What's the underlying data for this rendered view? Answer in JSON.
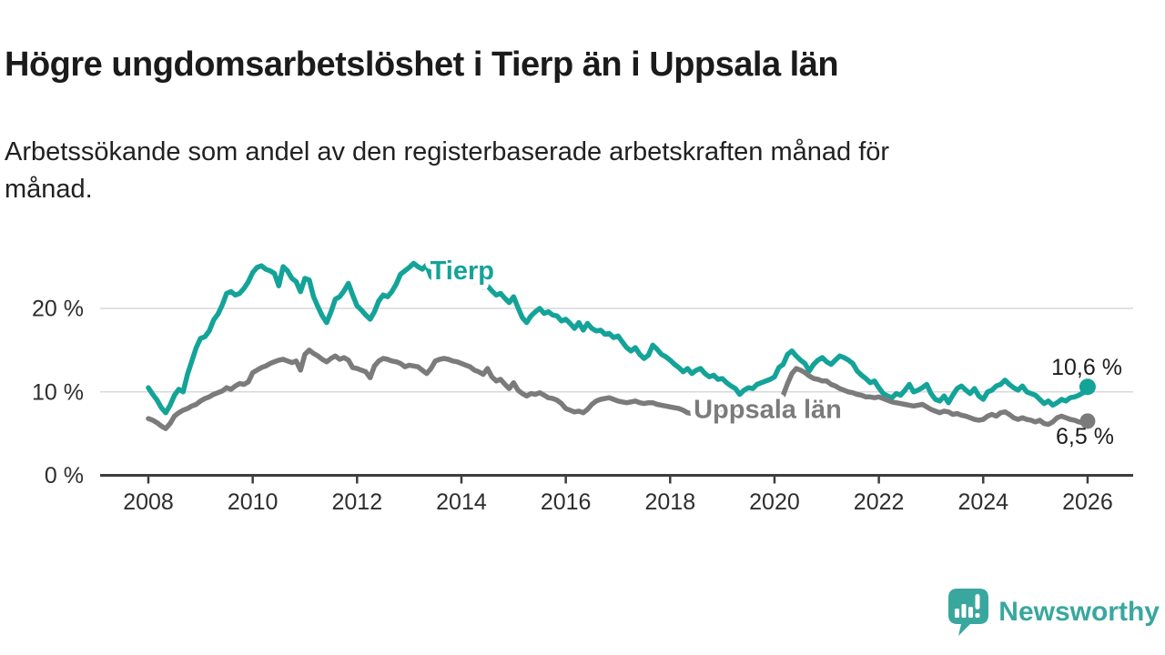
{
  "header": {
    "title": "Högre ungdomsarbetslöshet i Tierp än i Uppsala län",
    "subtitle": "Arbetssökande som andel av den registerbaserade arbetskraften månad för månad."
  },
  "footer": {
    "brand": "Newsworthy",
    "brand_color": "#3aa79e",
    "logo_icon": "bar-chart-speech-bubble"
  },
  "chart_data": {
    "type": "line",
    "title": "Högre ungdomsarbetslöshet i Tierp än i Uppsala län",
    "subtitle": "Arbetssökande som andel av den registerbaserade arbetskraften månad för månad.",
    "x_unit": "month",
    "x_start_year": 2008,
    "xlim_years": [
      2008,
      2026
    ],
    "ylim": [
      0,
      27
    ],
    "grid": "horizontal",
    "grid_color": "#d8d8d8",
    "axis_color": "#3d3d3d",
    "legend": "inline-labels",
    "y_ticks": [
      {
        "value": 0,
        "label": "0 %"
      },
      {
        "value": 10,
        "label": "10 %"
      },
      {
        "value": 20,
        "label": "20 %"
      }
    ],
    "x_ticks": [
      {
        "year": 2008,
        "label": "2008"
      },
      {
        "year": 2010,
        "label": "2010"
      },
      {
        "year": 2012,
        "label": "2012"
      },
      {
        "year": 2014,
        "label": "2014"
      },
      {
        "year": 2016,
        "label": "2016"
      },
      {
        "year": 2018,
        "label": "2018"
      },
      {
        "year": 2020,
        "label": "2020"
      },
      {
        "year": 2022,
        "label": "2022"
      },
      {
        "year": 2024,
        "label": "2024"
      },
      {
        "year": 2026,
        "label": "2026"
      }
    ],
    "series": [
      {
        "name": "Tierp",
        "color": "#14a398",
        "inline_label": {
          "text": "Tierp",
          "x_year": 2013.4,
          "y_pct": 24.3
        },
        "end_value": 10.6,
        "end_label": "10,6 %",
        "values": [
          10.5,
          9.7,
          9.0,
          8.1,
          7.5,
          8.4,
          9.6,
          10.3,
          10.0,
          12.1,
          13.7,
          15.3,
          16.4,
          16.6,
          17.3,
          18.6,
          19.3,
          20.4,
          21.8,
          22.0,
          21.6,
          21.8,
          22.4,
          23.2,
          24.3,
          24.9,
          25.1,
          24.7,
          24.5,
          24.2,
          22.7,
          25.0,
          24.5,
          23.6,
          23.2,
          22.0,
          23.6,
          23.4,
          21.4,
          20.2,
          19.1,
          18.3,
          19.6,
          21.1,
          21.4,
          22.1,
          23.0,
          21.6,
          20.3,
          19.8,
          19.2,
          18.7,
          19.6,
          20.9,
          21.6,
          21.4,
          22.0,
          22.9,
          24.1,
          24.5,
          24.9,
          25.4,
          25.0,
          24.7,
          25.2,
          23.8,
          23.4,
          25.0,
          25.2,
          24.9,
          24.7,
          24.1,
          23.8,
          23.9,
          23.6,
          23.2,
          22.9,
          22.5,
          22.7,
          22.1,
          21.6,
          21.8,
          21.2,
          20.7,
          21.4,
          20.1,
          18.9,
          18.3,
          19.1,
          19.6,
          20.0,
          19.4,
          19.6,
          19.2,
          19.1,
          18.5,
          18.7,
          18.2,
          17.6,
          18.3,
          17.4,
          18.2,
          17.6,
          17.3,
          17.4,
          16.9,
          17.0,
          16.5,
          16.7,
          16.0,
          15.3,
          14.9,
          15.3,
          14.5,
          14.0,
          14.4,
          15.6,
          15.1,
          14.5,
          14.2,
          13.8,
          13.3,
          12.9,
          12.4,
          12.8,
          12.2,
          12.6,
          12.8,
          12.2,
          11.8,
          12.0,
          11.5,
          11.6,
          11.1,
          10.7,
          10.4,
          9.7,
          10.2,
          10.5,
          10.4,
          10.9,
          11.1,
          11.3,
          11.5,
          11.8,
          12.9,
          13.3,
          14.5,
          14.9,
          14.3,
          13.8,
          13.4,
          12.5,
          13.3,
          13.8,
          14.1,
          13.6,
          13.3,
          13.8,
          14.3,
          14.1,
          13.8,
          13.4,
          12.5,
          12.0,
          11.6,
          11.1,
          11.3,
          10.5,
          9.8,
          9.5,
          9.3,
          9.8,
          9.6,
          10.2,
          10.9,
          10.0,
          10.2,
          10.5,
          10.9,
          9.8,
          9.1,
          8.9,
          9.5,
          8.7,
          9.6,
          10.4,
          10.7,
          10.2,
          9.8,
          10.4,
          9.5,
          9.1,
          10.0,
          10.2,
          10.7,
          10.9,
          11.4,
          10.9,
          10.5,
          10.2,
          10.7,
          10.0,
          9.8,
          9.6,
          9.1,
          8.6,
          8.9,
          8.4,
          8.7,
          9.1,
          8.9,
          9.3,
          9.4,
          9.6,
          9.9,
          10.6
        ]
      },
      {
        "name": "Uppsala län",
        "color": "#7b7b7b",
        "inline_label": {
          "text": "Uppsala län",
          "x_year": 2018.45,
          "y_pct": 7.7
        },
        "end_value": 6.5,
        "end_label": "6,5 %",
        "values": [
          6.8,
          6.6,
          6.3,
          5.9,
          5.6,
          6.2,
          7.1,
          7.5,
          7.8,
          8.0,
          8.3,
          8.5,
          8.9,
          9.2,
          9.4,
          9.7,
          9.9,
          10.1,
          10.5,
          10.3,
          10.7,
          11.0,
          10.9,
          11.2,
          12.3,
          12.6,
          12.9,
          13.1,
          13.4,
          13.6,
          13.8,
          13.9,
          13.7,
          13.5,
          13.7,
          12.6,
          14.5,
          15.0,
          14.6,
          14.3,
          13.9,
          13.6,
          14.0,
          14.3,
          13.9,
          14.1,
          13.8,
          12.9,
          12.8,
          12.6,
          12.4,
          11.7,
          13.1,
          13.7,
          14.0,
          13.9,
          13.7,
          13.6,
          13.4,
          13.0,
          13.2,
          13.1,
          13.0,
          12.6,
          12.2,
          12.8,
          13.7,
          13.9,
          14.0,
          13.9,
          13.7,
          13.6,
          13.4,
          13.2,
          13.0,
          12.6,
          12.4,
          12.1,
          12.8,
          11.8,
          11.3,
          11.5,
          10.9,
          10.4,
          11.1,
          10.2,
          9.8,
          9.5,
          9.8,
          9.7,
          9.9,
          9.6,
          9.3,
          9.2,
          9.0,
          8.6,
          8.0,
          7.8,
          7.6,
          7.7,
          7.5,
          7.9,
          8.5,
          8.9,
          9.1,
          9.2,
          9.3,
          9.1,
          8.9,
          8.8,
          8.7,
          8.8,
          8.9,
          8.7,
          8.6,
          8.7,
          8.7,
          8.5,
          8.4,
          8.3,
          8.2,
          8.1,
          8.0,
          7.8,
          7.5,
          7.4,
          7.5,
          7.6,
          7.5,
          7.4,
          7.4,
          7.5,
          7.6,
          7.5,
          7.4,
          7.5,
          7.6,
          7.7,
          7.8,
          7.9,
          7.9,
          8.0,
          8.1,
          8.2,
          8.5,
          8.8,
          9.6,
          11.0,
          12.2,
          12.8,
          12.6,
          12.3,
          11.9,
          11.6,
          11.5,
          11.3,
          11.3,
          10.9,
          10.7,
          10.4,
          10.2,
          10.0,
          9.9,
          9.7,
          9.6,
          9.4,
          9.4,
          9.3,
          9.4,
          9.2,
          9.0,
          8.8,
          8.7,
          8.6,
          8.5,
          8.4,
          8.3,
          8.4,
          8.5,
          8.2,
          7.9,
          7.7,
          7.5,
          7.7,
          7.6,
          7.3,
          7.4,
          7.2,
          7.1,
          6.9,
          6.7,
          6.6,
          6.7,
          7.1,
          7.3,
          7.1,
          7.5,
          7.6,
          7.3,
          6.9,
          6.7,
          6.9,
          6.7,
          6.6,
          6.4,
          6.6,
          6.2,
          6.1,
          6.4,
          6.9,
          7.1,
          6.9,
          6.7,
          6.6,
          6.4,
          6.3,
          6.5
        ]
      }
    ]
  }
}
